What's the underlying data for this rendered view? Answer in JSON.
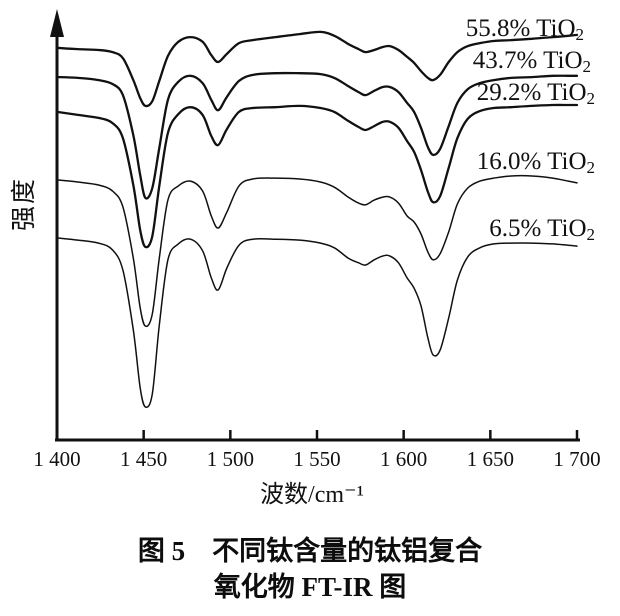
{
  "figure": {
    "caption_line1": "图 5　不同钛含量的钛铝复合",
    "caption_line2": "氧化物 FT-IR 图"
  },
  "chart_data": {
    "type": "line",
    "title": "图 5 不同钛含量的钛铝复合氧化物 FT-IR 图",
    "xlabel": "波数/cm⁻¹",
    "ylabel": "强度",
    "xlim": [
      1400,
      1700
    ],
    "ylim": [
      0,
      100
    ],
    "grid": false,
    "legend_position": "labels at right end of each curve",
    "line_color": "#111111",
    "x_ticks": [
      {
        "value": 1400,
        "label": "1 400"
      },
      {
        "value": 1450,
        "label": "1 450"
      },
      {
        "value": 1500,
        "label": "1 500"
      },
      {
        "value": 1550,
        "label": "1 550"
      },
      {
        "value": 1600,
        "label": "1 600"
      },
      {
        "value": 1650,
        "label": "1 650"
      },
      {
        "value": 1700,
        "label": "1 700"
      }
    ],
    "x": [
      1400,
      1412,
      1424,
      1432,
      1438,
      1444,
      1448,
      1451,
      1455,
      1459,
      1464,
      1470,
      1477,
      1484,
      1489,
      1493,
      1498,
      1505,
      1513,
      1526,
      1540,
      1552,
      1560,
      1568,
      1574,
      1578,
      1583,
      1588,
      1592,
      1597,
      1602,
      1606,
      1610,
      1614,
      1617,
      1621,
      1626,
      1631,
      1637,
      1644,
      1652,
      1662,
      1674,
      1686,
      1695,
      1700
    ],
    "series": [
      {
        "name": "55.8% TiO2",
        "intensity": [
          91.2,
          90.9,
          90.7,
          90.2,
          88.8,
          83.7,
          79.5,
          77.7,
          78.8,
          83.5,
          89.3,
          92.6,
          93.7,
          92.6,
          89.5,
          87.9,
          89.8,
          92.3,
          93.0,
          93.7,
          94.4,
          94.9,
          94.0,
          92.1,
          90.9,
          90.2,
          90.7,
          91.4,
          91.6,
          90.7,
          89.1,
          87.7,
          85.8,
          84.2,
          83.7,
          84.9,
          87.9,
          90.2,
          91.6,
          92.3,
          92.8,
          93.0,
          93.3,
          93.7,
          94.0,
          94.2
        ]
      },
      {
        "name": "43.7% TiO2",
        "intensity": [
          84.4,
          84.2,
          83.7,
          82.8,
          80.2,
          70.9,
          61.6,
          56.3,
          58.6,
          67.9,
          79.1,
          83.3,
          84.7,
          83.0,
          79.1,
          76.7,
          79.8,
          83.5,
          84.9,
          85.3,
          85.3,
          85.1,
          84.2,
          82.3,
          80.9,
          80.2,
          81.2,
          82.1,
          82.1,
          80.9,
          78.4,
          76.3,
          72.6,
          68.1,
          66.3,
          67.7,
          73.0,
          78.4,
          81.6,
          83.0,
          83.7,
          84.2,
          84.4,
          84.7,
          84.7,
          84.7
        ]
      },
      {
        "name": "29.2% TiO2",
        "intensity": [
          76.3,
          75.6,
          74.9,
          73.7,
          70.2,
          59.3,
          48.8,
          44.9,
          47.4,
          59.1,
          71.4,
          75.8,
          77.4,
          75.6,
          70.7,
          68.6,
          72.3,
          76.3,
          77.2,
          77.4,
          77.7,
          77.2,
          76.3,
          74.2,
          72.8,
          72.1,
          73.0,
          74.0,
          74.0,
          72.6,
          69.5,
          67.0,
          62.8,
          57.7,
          55.3,
          56.7,
          63.3,
          70.2,
          74.7,
          76.5,
          77.2,
          77.4,
          77.7,
          77.9,
          77.9,
          77.9
        ]
      },
      {
        "name": "16.0% TiO2",
        "intensity": [
          60.5,
          60.0,
          59.3,
          57.9,
          54.2,
          42.3,
          30.7,
          26.5,
          29.3,
          42.3,
          55.8,
          59.1,
          60.2,
          57.9,
          52.1,
          49.3,
          53.0,
          59.1,
          60.7,
          60.9,
          60.7,
          60.0,
          58.8,
          56.5,
          55.1,
          54.7,
          55.8,
          56.5,
          56.5,
          55.1,
          52.1,
          50.7,
          47.9,
          43.7,
          41.9,
          43.3,
          48.4,
          54.9,
          58.6,
          60.2,
          60.9,
          61.4,
          61.4,
          60.9,
          60.2,
          59.8
        ]
      },
      {
        "name": "6.5% TiO2",
        "intensity": [
          47.0,
          46.5,
          45.8,
          44.2,
          39.5,
          25.6,
          12.1,
          7.7,
          10.7,
          26.7,
          41.9,
          45.6,
          46.7,
          44.0,
          37.7,
          34.9,
          40.0,
          45.3,
          46.7,
          46.7,
          46.5,
          45.8,
          44.7,
          42.3,
          41.2,
          40.7,
          41.9,
          42.8,
          42.8,
          41.2,
          37.7,
          35.3,
          31.2,
          23.7,
          19.8,
          20.9,
          28.4,
          37.2,
          42.6,
          44.7,
          45.6,
          45.8,
          45.8,
          45.6,
          45.3,
          45.1
        ]
      }
    ]
  }
}
